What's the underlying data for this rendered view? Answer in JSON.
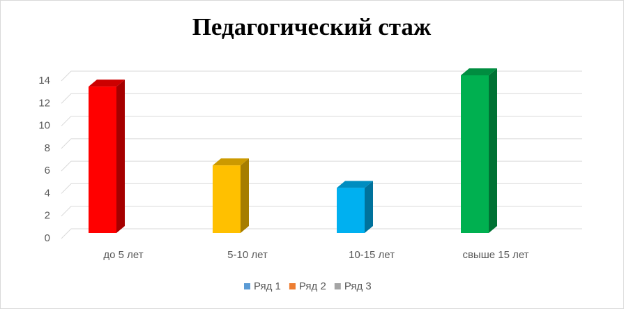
{
  "chart_data": {
    "type": "bar3d",
    "title": "Педагогический стаж",
    "categories": [
      "до 5 лет",
      "5-10 лет",
      "10-15 лет",
      "свыше 15 лет"
    ],
    "series": [
      {
        "name": "Ряд 1",
        "color": "#5b9bd5",
        "point_colors": [
          "#ff0000",
          "#ffc000",
          "#00b0f0",
          "#00b050"
        ],
        "values": [
          13,
          6,
          4,
          14
        ]
      },
      {
        "name": "Ряд 2",
        "color": "#ed7d31",
        "values": [
          null,
          null,
          null,
          null
        ]
      },
      {
        "name": "Ряд 3",
        "color": "#a5a5a5",
        "values": [
          null,
          null,
          null,
          null
        ]
      }
    ],
    "ylim": [
      0,
      14
    ],
    "yticks": [
      0,
      2,
      4,
      6,
      8,
      10,
      12,
      14
    ],
    "grid": true,
    "legend": "bottom"
  }
}
